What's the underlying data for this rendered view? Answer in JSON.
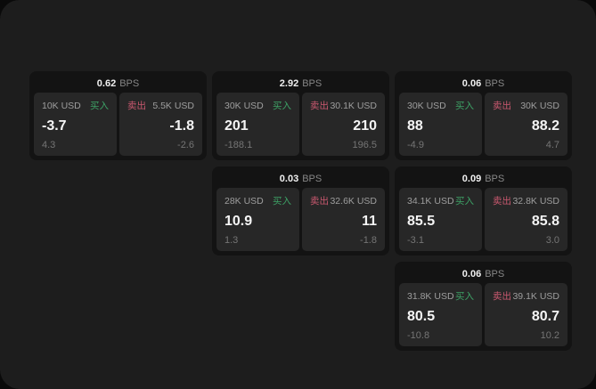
{
  "page": {
    "background": "#0a0a0a",
    "board_background": "#1d1d1d",
    "card_background": "#131313",
    "panel_background": "#272727"
  },
  "colors": {
    "buy": "#3da266",
    "sell": "#c9586f",
    "price_text": "#f5f5f5",
    "label_gray": "#9e9e9e",
    "delta_gray": "#757575"
  },
  "labels": {
    "bps": "BPS",
    "buy": "买入",
    "sell": "卖出"
  },
  "cards": [
    {
      "bps": "0.62",
      "row": 1,
      "col": 1,
      "buy": {
        "size": "10K USD",
        "price": "-3.7",
        "delta": "4.3"
      },
      "sell": {
        "size": "5.5K USD",
        "price": "-1.8",
        "delta": "-2.6"
      }
    },
    {
      "bps": "2.92",
      "row": 1,
      "col": 2,
      "buy": {
        "size": "30K USD",
        "price": "201",
        "delta": "-188.1"
      },
      "sell": {
        "size": "30.1K USD",
        "price": "210",
        "delta": "196.5"
      }
    },
    {
      "bps": "0.06",
      "row": 1,
      "col": 3,
      "buy": {
        "size": "30K USD",
        "price": "88",
        "delta": "-4.9"
      },
      "sell": {
        "size": "30K USD",
        "price": "88.2",
        "delta": "4.7"
      }
    },
    {
      "bps": "0.03",
      "row": 2,
      "col": 2,
      "buy": {
        "size": "28K USD",
        "price": "10.9",
        "delta": "1.3"
      },
      "sell": {
        "size": "32.6K USD",
        "price": "11",
        "delta": "-1.8"
      }
    },
    {
      "bps": "0.09",
      "row": 2,
      "col": 3,
      "buy": {
        "size": "34.1K USD",
        "price": "85.5",
        "delta": "-3.1"
      },
      "sell": {
        "size": "32.8K USD",
        "price": "85.8",
        "delta": "3.0"
      }
    },
    {
      "bps": "0.06",
      "row": 3,
      "col": 3,
      "buy": {
        "size": "31.8K USD",
        "price": "80.5",
        "delta": "-10.8"
      },
      "sell": {
        "size": "39.1K USD",
        "price": "80.7",
        "delta": "10.2"
      }
    }
  ]
}
